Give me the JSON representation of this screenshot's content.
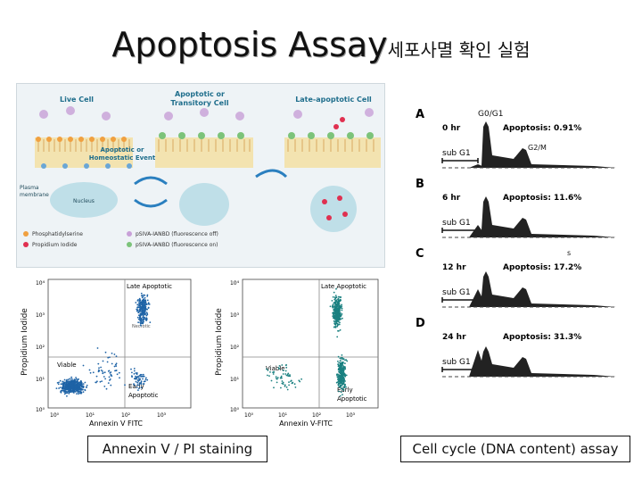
{
  "title": {
    "main": "Apoptosis Assay",
    "sub": "세포사멸 확인 실험"
  },
  "schematic": {
    "live_cell": "Live Cell",
    "apoptotic_or": "Apoptotic or",
    "transitory_cell": "Transitory Cell",
    "late_apoptotic_cell": "Late-apoptotic Cell",
    "apoptotic_or_homeostatic": "Apoptotic or",
    "homeostatic_event": "Homeostatic Event",
    "plasma": "Plasma",
    "membrane": "membrane",
    "nucleus": "Nucleus",
    "phosphatidylserine": "Phosphatidylserine",
    "propidium_iodide": "Propidium Iodide",
    "pdna_off": "pSIVA-IANBD (fluorescence off)",
    "pdna_on": "pSIVA-IANBD (fluorescence on)"
  },
  "flow_plots": [
    {
      "ylabel": "Propidium Iodide",
      "xlabel": "Annexin V FITC",
      "ticks_y": [
        "10⁴",
        "10³",
        "10²",
        "10¹",
        "10⁰"
      ],
      "ticks_x": [
        "10⁰",
        "10¹",
        "10²",
        "10³"
      ],
      "q_late": "Late Apoptotic",
      "q_viable": "Viable",
      "q_early": "Early",
      "q_early2": "Apoptotic",
      "q_necrotic": "Necrotic"
    },
    {
      "ylabel": "Propidium Iodide",
      "xlabel": "Annexin V-FITC",
      "ticks_y": [
        "10⁴",
        "10³",
        "10²",
        "10¹",
        "10⁰"
      ],
      "ticks_x": [
        "10⁰",
        "10¹",
        "10²",
        "10³"
      ],
      "q_late": "Late Apoptotic",
      "q_viable": "Viable",
      "q_early": "Early",
      "q_early2": "Apoptotic"
    }
  ],
  "cell_cycle": {
    "g0g1": "G0/G1",
    "s": "S",
    "g2m": "G2/M",
    "s2": "s",
    "panels": [
      {
        "letter": "A",
        "time": "0 hr",
        "apoptosis": "Apoptosis: 0.91%",
        "subg1": "sub G1"
      },
      {
        "letter": "B",
        "time": "6 hr",
        "apoptosis": "Apoptosis: 11.6%",
        "subg1": "sub G1"
      },
      {
        "letter": "C",
        "time": "12 hr",
        "apoptosis": "Apoptosis: 17.2%",
        "subg1": "sub G1"
      },
      {
        "letter": "D",
        "time": "24 hr",
        "apoptosis": "Apoptosis: 31.3%",
        "subg1": "sub G1"
      }
    ]
  },
  "captions": {
    "left": "Annexin V / PI staining",
    "right": "Cell cycle (DNA content) assay"
  }
}
